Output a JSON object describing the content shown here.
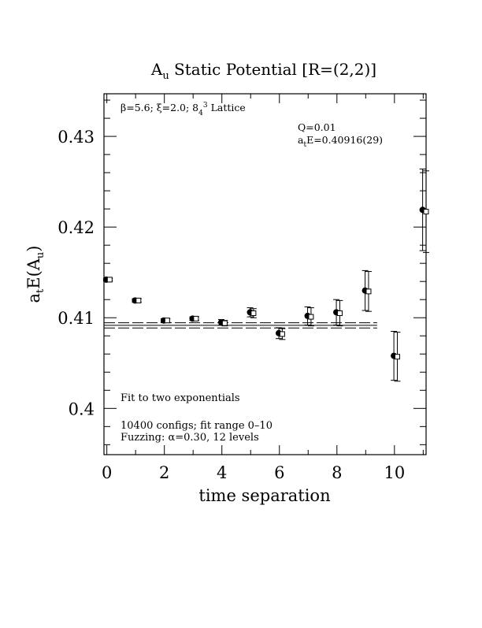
{
  "chart_data": {
    "type": "scatter",
    "title": "A_u Static Potential [R=(2,2)]",
    "title_parts": {
      "pre": "A",
      "sub": "u",
      "post": " Static Potential [R=(2,2)]"
    },
    "xlabel": "time separation",
    "ylabel": "a_tE(A_u)",
    "ylabel_parts": {
      "a": "a",
      "t": "t",
      "mid": "E(A",
      "u": "u",
      "close": ")"
    },
    "xlim": [
      -0.1,
      11.1
    ],
    "ylim": [
      0.3949,
      0.4347
    ],
    "x_ticks": [
      0,
      2,
      4,
      6,
      8,
      10
    ],
    "x_tick_labels": [
      "0",
      "2",
      "4",
      "6",
      "8",
      "10"
    ],
    "y_ticks": [
      0.4,
      0.41,
      0.42,
      0.43
    ],
    "y_tick_labels": [
      "0.4",
      "0.41",
      "0.42",
      "0.43"
    ],
    "grid": false,
    "lattice_label": {
      "beta": "β=5.6; ξ=2.0; 8",
      "pow": "4",
      "cube": "3",
      "rest": " Lattice"
    },
    "fit": {
      "q": "Q=0.01",
      "a": "a",
      "t": "t",
      "value": "E=0.40916(29)",
      "central": 0.40916,
      "error": 0.00029,
      "range": [
        -0.1,
        9.4
      ]
    },
    "notes": [
      "Fit to two exponentials",
      "10400 configs; fit range 0–10"
    ],
    "fuzzing": {
      "pre": "Fuzzing: ",
      "alpha": "α",
      "post": "=0.30, 12 levels"
    },
    "series": [
      {
        "marker": "filled-circle",
        "x": [
          0,
          1,
          2,
          3,
          4,
          5,
          6,
          7,
          8,
          9,
          10,
          11
        ],
        "y": [
          0.4142,
          0.4119,
          0.4097,
          0.4099,
          0.4095,
          0.4106,
          0.4083,
          0.4102,
          0.4106,
          0.413,
          0.4058,
          0.4219
        ],
        "err": [
          0.00015,
          0.0002,
          0.0002,
          0.0002,
          0.0003,
          0.0005,
          0.0006,
          0.001,
          0.0014,
          0.0022,
          0.0027,
          0.0045
        ]
      },
      {
        "marker": "open-square",
        "x": [
          0,
          1,
          2,
          3,
          4,
          5,
          6,
          7,
          8,
          9,
          10,
          11
        ],
        "y": [
          0.4142,
          0.4119,
          0.4097,
          0.4099,
          0.4094,
          0.4105,
          0.4082,
          0.4101,
          0.4105,
          0.4129,
          0.4057,
          0.4217
        ],
        "err": [
          0.00015,
          0.0002,
          0.0002,
          0.0002,
          0.0003,
          0.0005,
          0.0006,
          0.001,
          0.0014,
          0.0022,
          0.0027,
          0.0045
        ]
      }
    ]
  }
}
